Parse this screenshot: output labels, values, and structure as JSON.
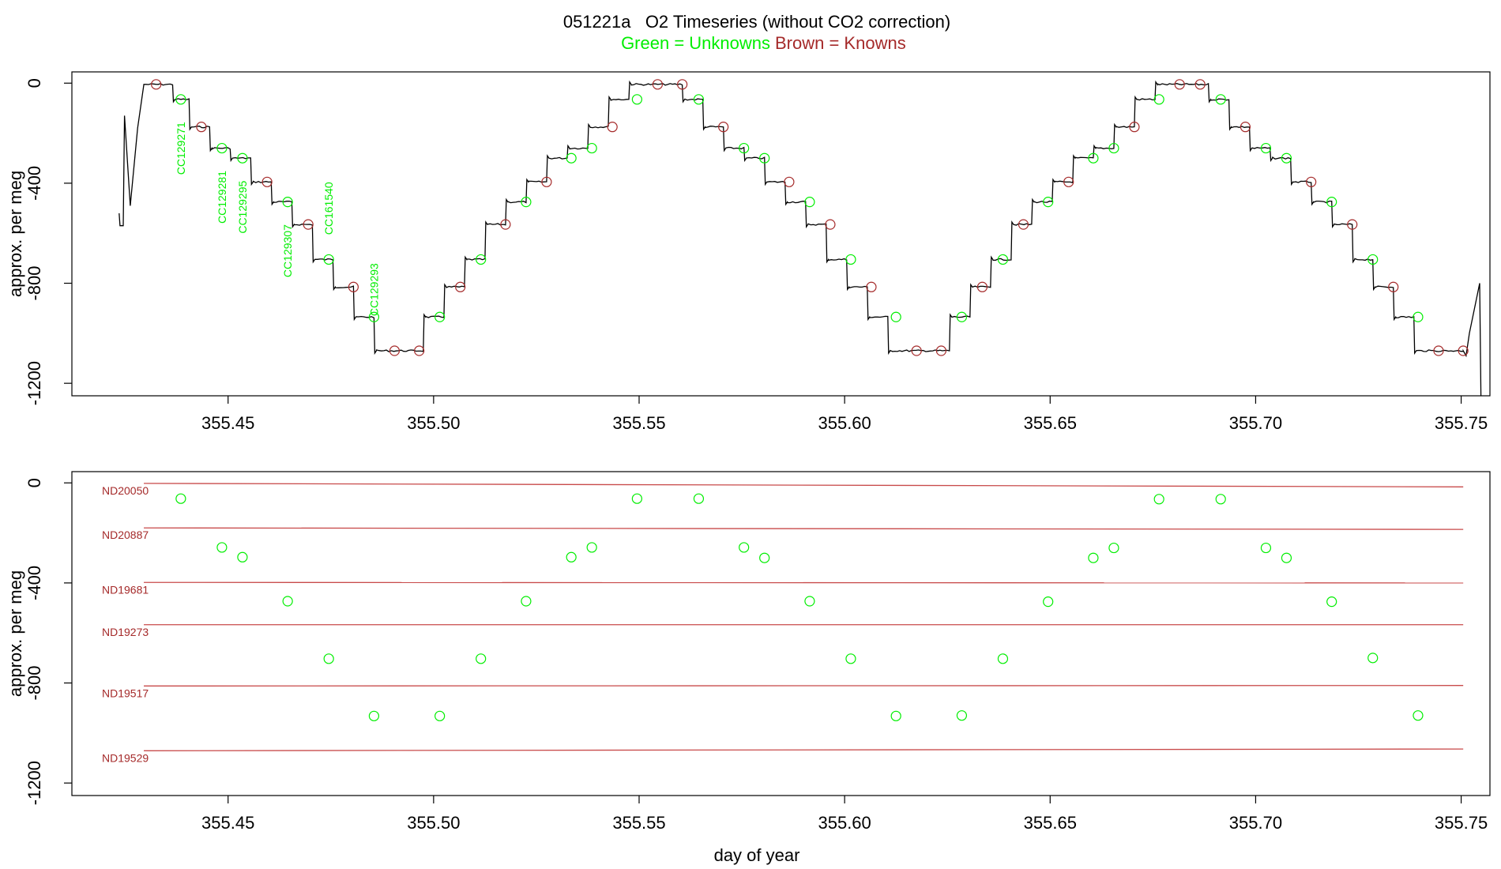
{
  "title": {
    "main": "051221a   O2 Timeseries (without CO2 correction)",
    "green": "Green = Unknowns",
    "brown": "Brown = Knowns"
  },
  "colors": {
    "unknown": "#00ee00",
    "known": "#a52a2a",
    "known_line": "#c84a4a",
    "trace": "#000000"
  },
  "chart_data": [
    {
      "type": "line",
      "panel": "top",
      "title": "051221a   O2 Timeseries (without CO2 correction)",
      "xlabel": "",
      "ylabel": "approx. per meg",
      "xlim": [
        355.412,
        355.757
      ],
      "ylim": [
        -1250,
        45
      ],
      "x_ticks": [
        "355.45",
        "355.50",
        "355.55",
        "355.60",
        "355.65",
        "355.70",
        "355.75"
      ],
      "x_tick_values": [
        355.45,
        355.5,
        355.55,
        355.6,
        355.65,
        355.7,
        355.75
      ],
      "y_ticks": [
        "0",
        "-400",
        "-800",
        "-1200"
      ],
      "y_tick_values": [
        0,
        -400,
        -800,
        -1200
      ],
      "series": [
        {
          "kind": "steps",
          "steps": [
            [
              355.4295,
              355.4365,
              -5
            ],
            [
              355.4365,
              355.4405,
              -65
            ],
            [
              355.4405,
              355.4455,
              -175
            ],
            [
              355.4455,
              355.4505,
              -260
            ],
            [
              355.4505,
              355.4555,
              -300
            ],
            [
              355.4555,
              355.4605,
              -395
            ],
            [
              355.4605,
              355.4655,
              -475
            ],
            [
              355.4655,
              355.4705,
              -565
            ],
            [
              355.4705,
              355.4755,
              -705
            ],
            [
              355.4755,
              355.4805,
              -815
            ],
            [
              355.4805,
              355.4855,
              -935
            ],
            [
              355.4855,
              355.4975,
              -1070
            ],
            [
              355.4975,
              355.5025,
              -935
            ],
            [
              355.5025,
              355.5075,
              -815
            ],
            [
              355.5075,
              355.5125,
              -705
            ],
            [
              355.5125,
              355.5175,
              -565
            ],
            [
              355.5175,
              355.5225,
              -475
            ],
            [
              355.5225,
              355.5275,
              -395
            ],
            [
              355.5275,
              355.5325,
              -300
            ],
            [
              355.5325,
              355.5375,
              -260
            ],
            [
              355.5375,
              355.5425,
              -175
            ],
            [
              355.5425,
              355.5475,
              -65
            ],
            [
              355.5475,
              355.5605,
              -5
            ],
            [
              355.5605,
              355.5655,
              -65
            ],
            [
              355.5655,
              355.5705,
              -175
            ],
            [
              355.5705,
              355.5755,
              -260
            ],
            [
              355.5755,
              355.5805,
              -300
            ],
            [
              355.5805,
              355.5855,
              -395
            ],
            [
              355.5855,
              355.5905,
              -475
            ],
            [
              355.5905,
              355.5955,
              -565
            ],
            [
              355.5955,
              355.6005,
              -705
            ],
            [
              355.6005,
              355.6055,
              -815
            ],
            [
              355.6055,
              355.6105,
              -935
            ],
            [
              355.6105,
              355.6255,
              -1070
            ],
            [
              355.6255,
              355.6305,
              -935
            ],
            [
              355.6305,
              355.6355,
              -815
            ],
            [
              355.6355,
              355.6405,
              -705
            ],
            [
              355.6405,
              355.6455,
              -565
            ],
            [
              355.6455,
              355.6505,
              -475
            ],
            [
              355.6505,
              355.6555,
              -395
            ],
            [
              355.6555,
              355.6605,
              -300
            ],
            [
              355.6605,
              355.6655,
              -260
            ],
            [
              355.6655,
              355.6705,
              -175
            ],
            [
              355.6705,
              355.6755,
              -65
            ],
            [
              355.6755,
              355.6885,
              -5
            ],
            [
              355.6885,
              355.6935,
              -65
            ],
            [
              355.6935,
              355.6985,
              -175
            ],
            [
              355.6985,
              355.7035,
              -260
            ],
            [
              355.7035,
              355.7085,
              -300
            ],
            [
              355.7085,
              355.7135,
              -395
            ],
            [
              355.7135,
              355.7185,
              -475
            ],
            [
              355.7185,
              355.7235,
              -565
            ],
            [
              355.7235,
              355.7285,
              -705
            ],
            [
              355.7285,
              355.7335,
              -815
            ],
            [
              355.7335,
              355.7385,
              -935
            ],
            [
              355.7385,
              355.7505,
              -1070
            ]
          ],
          "start_points": [
            [
              355.4235,
              -520
            ],
            [
              355.4237,
              -570
            ],
            [
              355.4245,
              -570
            ],
            [
              355.4248,
              -130
            ],
            [
              355.4262,
              -490
            ],
            [
              355.428,
              -180
            ],
            [
              355.4295,
              -5
            ]
          ],
          "end_points": [
            [
              355.7505,
              -1070
            ],
            [
              355.7512,
              -1090
            ],
            [
              355.752,
              -1000
            ],
            [
              355.7535,
              -880
            ],
            [
              355.7545,
              -800
            ],
            [
              355.7548,
              -1250
            ]
          ]
        }
      ],
      "unknown_points": [
        [
          355.4385,
          -65
        ],
        [
          355.4485,
          -260
        ],
        [
          355.4535,
          -300
        ],
        [
          355.4645,
          -475
        ],
        [
          355.4745,
          -705
        ],
        [
          355.4855,
          -935
        ],
        [
          355.5015,
          -935
        ],
        [
          355.5115,
          -705
        ],
        [
          355.5225,
          -475
        ],
        [
          355.5335,
          -300
        ],
        [
          355.5385,
          -260
        ],
        [
          355.5495,
          -65
        ],
        [
          355.5645,
          -65
        ],
        [
          355.5755,
          -260
        ],
        [
          355.5805,
          -300
        ],
        [
          355.5915,
          -475
        ],
        [
          355.6015,
          -705
        ],
        [
          355.6125,
          -935
        ],
        [
          355.6285,
          -935
        ],
        [
          355.6385,
          -705
        ],
        [
          355.6495,
          -475
        ],
        [
          355.6605,
          -300
        ],
        [
          355.6655,
          -260
        ],
        [
          355.6765,
          -65
        ],
        [
          355.6915,
          -65
        ],
        [
          355.7025,
          -260
        ],
        [
          355.7075,
          -300
        ],
        [
          355.7185,
          -475
        ],
        [
          355.7285,
          -705
        ],
        [
          355.7395,
          -935
        ]
      ],
      "known_points": [
        [
          355.4325,
          -5
        ],
        [
          355.4435,
          -175
        ],
        [
          355.4595,
          -395
        ],
        [
          355.4695,
          -565
        ],
        [
          355.4805,
          -815
        ],
        [
          355.4905,
          -1070
        ],
        [
          355.4965,
          -1070
        ],
        [
          355.5065,
          -815
        ],
        [
          355.5175,
          -565
        ],
        [
          355.5275,
          -395
        ],
        [
          355.5435,
          -175
        ],
        [
          355.5545,
          -5
        ],
        [
          355.5605,
          -5
        ],
        [
          355.5705,
          -175
        ],
        [
          355.5865,
          -395
        ],
        [
          355.5965,
          -565
        ],
        [
          355.6065,
          -815
        ],
        [
          355.6175,
          -1070
        ],
        [
          355.6235,
          -1070
        ],
        [
          355.6335,
          -815
        ],
        [
          355.6435,
          -565
        ],
        [
          355.6545,
          -395
        ],
        [
          355.6705,
          -175
        ],
        [
          355.6815,
          -5
        ],
        [
          355.6865,
          -5
        ],
        [
          355.6975,
          -175
        ],
        [
          355.7135,
          -395
        ],
        [
          355.7235,
          -565
        ],
        [
          355.7335,
          -815
        ],
        [
          355.7445,
          -1070
        ],
        [
          355.7505,
          -1070
        ]
      ],
      "annotations": [
        {
          "text": "CC129271",
          "x": 355.4385,
          "y": -155
        },
        {
          "text": "CC129281",
          "x": 355.4485,
          "y": -350
        },
        {
          "text": "CC129295",
          "x": 355.4535,
          "y": -390
        },
        {
          "text": "CC129307",
          "x": 355.4645,
          "y": -565
        },
        {
          "text": "CC161540",
          "x": 355.4745,
          "y": -395
        },
        {
          "text": "CC129293",
          "x": 355.4855,
          "y": -720
        }
      ]
    },
    {
      "type": "scatter",
      "panel": "bottom",
      "xlabel": "day of year",
      "ylabel": "approx. per meg",
      "xlim": [
        355.412,
        355.757
      ],
      "ylim": [
        -1250,
        45
      ],
      "x_ticks": [
        "355.45",
        "355.50",
        "355.55",
        "355.60",
        "355.65",
        "355.70",
        "355.75"
      ],
      "x_tick_values": [
        355.45,
        355.5,
        355.55,
        355.6,
        355.65,
        355.7,
        355.75
      ],
      "y_ticks": [
        "0",
        "-400",
        "-800",
        "-1200"
      ],
      "y_tick_values": [
        0,
        -400,
        -800,
        -1200
      ],
      "known_lines": [
        {
          "name": "ND20050",
          "x": [
            355.4295,
            355.7505
          ],
          "y": [
            -2,
            -16
          ]
        },
        {
          "name": "ND20887",
          "x": [
            355.4295,
            355.7505
          ],
          "y": [
            -180,
            -186
          ]
        },
        {
          "name": "ND19681",
          "x": [
            355.4295,
            355.7505
          ],
          "y": [
            -398,
            -400
          ]
        },
        {
          "name": "ND19273",
          "x": [
            355.4295,
            355.7505
          ],
          "y": [
            -567,
            -567
          ]
        },
        {
          "name": "ND19517",
          "x": [
            355.4295,
            355.7505
          ],
          "y": [
            -812,
            -810
          ]
        },
        {
          "name": "ND19529",
          "x": [
            355.4295,
            355.7505
          ],
          "y": [
            -1071,
            -1064
          ]
        }
      ],
      "points": [
        [
          355.4385,
          -63
        ],
        [
          355.4485,
          -258
        ],
        [
          355.4535,
          -297
        ],
        [
          355.4645,
          -473
        ],
        [
          355.4745,
          -703
        ],
        [
          355.4855,
          -932
        ],
        [
          355.5015,
          -932
        ],
        [
          355.5115,
          -703
        ],
        [
          355.5225,
          -473
        ],
        [
          355.5335,
          -297
        ],
        [
          355.5385,
          -258
        ],
        [
          355.5495,
          -63
        ],
        [
          355.5645,
          -63
        ],
        [
          355.5755,
          -258
        ],
        [
          355.5805,
          -300
        ],
        [
          355.5915,
          -473
        ],
        [
          355.6015,
          -703
        ],
        [
          355.6125,
          -932
        ],
        [
          355.6285,
          -930
        ],
        [
          355.6385,
          -703
        ],
        [
          355.6495,
          -475
        ],
        [
          355.6605,
          -300
        ],
        [
          355.6655,
          -260
        ],
        [
          355.6765,
          -65
        ],
        [
          355.6915,
          -65
        ],
        [
          355.7025,
          -260
        ],
        [
          355.7075,
          -300
        ],
        [
          355.7185,
          -475
        ],
        [
          355.7285,
          -700
        ],
        [
          355.7395,
          -930
        ]
      ]
    }
  ]
}
